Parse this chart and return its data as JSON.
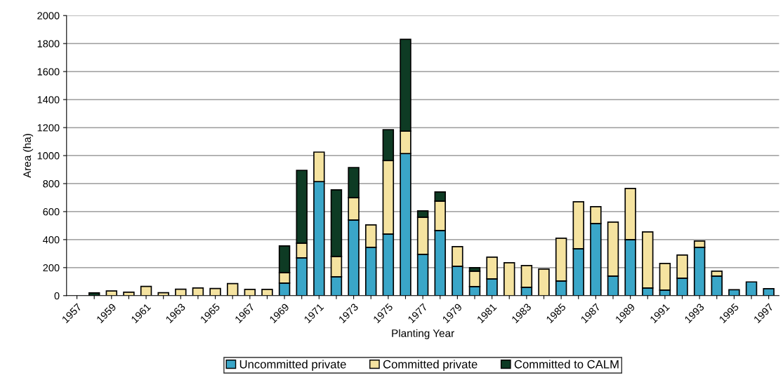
{
  "chart_data": {
    "type": "bar",
    "stacked": true,
    "xlabel": "Planting Year",
    "ylabel": "Area (ha)",
    "categories": [
      "1957",
      null,
      "1959",
      null,
      "1961",
      null,
      "1963",
      null,
      "1965",
      null,
      "1967",
      null,
      "1969",
      null,
      "1971",
      null,
      "1973",
      null,
      "1975",
      null,
      "1977",
      null,
      "1979",
      null,
      "1981",
      null,
      "1983",
      null,
      "1985",
      null,
      "1987",
      null,
      "1989",
      null,
      "1991",
      null,
      "1993",
      null,
      "1995",
      null,
      "1997"
    ],
    "series": [
      {
        "name": "Uncommitted private",
        "color": "#3aa6c8",
        "values": [
          0,
          0,
          0,
          0,
          0,
          0,
          0,
          0,
          0,
          0,
          0,
          0,
          90,
          270,
          815,
          135,
          540,
          345,
          440,
          1015,
          295,
          465,
          210,
          65,
          120,
          0,
          60,
          0,
          105,
          335,
          515,
          140,
          400,
          55,
          40,
          125,
          345,
          140,
          42,
          98,
          50
        ]
      },
      {
        "name": "Committed private",
        "color": "#f5e3a0",
        "values": [
          null,
          0,
          33,
          25,
          66,
          21,
          46,
          55,
          51,
          86,
          45,
          45,
          75,
          105,
          210,
          145,
          160,
          160,
          525,
          160,
          265,
          210,
          140,
          110,
          155,
          235,
          155,
          190,
          305,
          335,
          120,
          385,
          365,
          400,
          190,
          165,
          45,
          35,
          0,
          0,
          0
        ]
      },
      {
        "name": "Committed to CALM",
        "color": "#0e3b24",
        "values": [
          0,
          20,
          0,
          0,
          0,
          0,
          0,
          0,
          0,
          0,
          0,
          0,
          190,
          520,
          0,
          475,
          215,
          0,
          220,
          655,
          45,
          65,
          0,
          25,
          0,
          0,
          0,
          0,
          0,
          0,
          0,
          0,
          0,
          0,
          0,
          0,
          0,
          0,
          0,
          0,
          0
        ]
      }
    ],
    "ylim": [
      0,
      2000
    ],
    "yticks": [
      0,
      200,
      400,
      600,
      800,
      1000,
      1200,
      1400,
      1600,
      1800,
      2000
    ],
    "grid": "y",
    "legend": "bottom"
  }
}
